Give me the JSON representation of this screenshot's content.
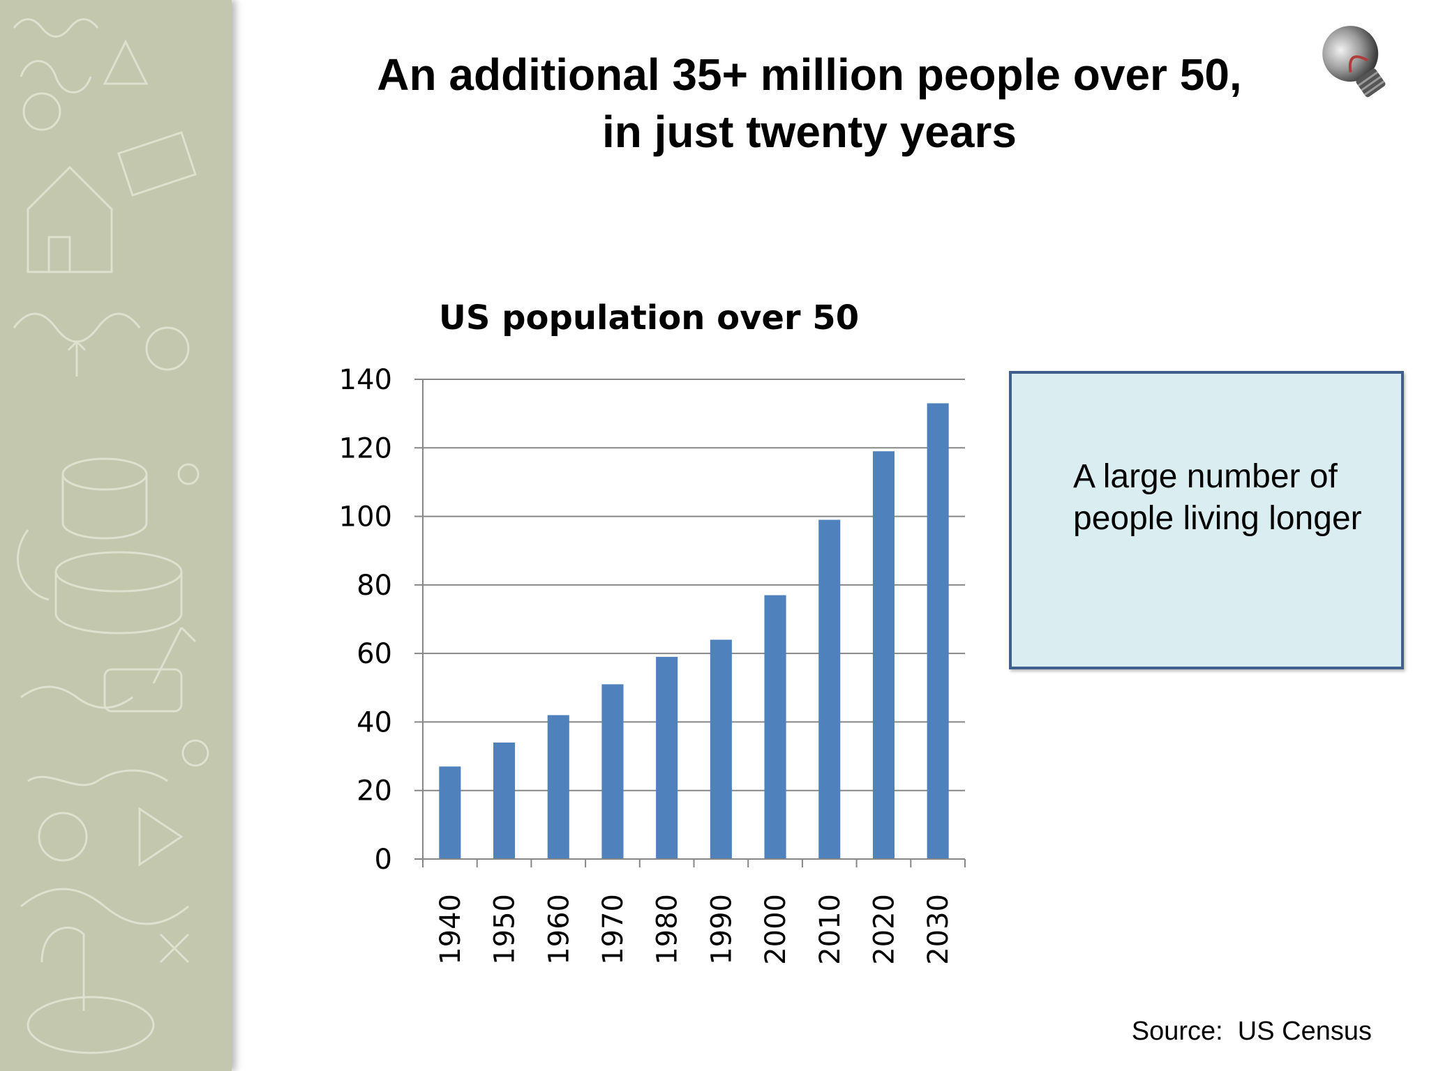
{
  "slide": {
    "title_line1": "An additional 35+ million people over 50,",
    "title_line2": "in just twenty years",
    "callout_text": "A large number of people living longer",
    "source": "Source:  US Census"
  },
  "colors": {
    "bar": "#4f81bd",
    "sidebar": "#c3c7ad",
    "callout_bg": "#daedf0",
    "callout_border": "#3f5f8c"
  },
  "icons": [
    "light-bulb-icon"
  ],
  "chart_data": {
    "type": "bar",
    "title": "US population over 50",
    "categories": [
      "1940",
      "1950",
      "1960",
      "1970",
      "1980",
      "1990",
      "2000",
      "2010",
      "2020",
      "2030"
    ],
    "series": [
      {
        "values": [
          27,
          34,
          42,
          51,
          59,
          64,
          77,
          99,
          119,
          133
        ]
      }
    ],
    "ylim": [
      0,
      140
    ],
    "yticks": [
      0,
      20,
      40,
      60,
      80,
      100,
      120,
      140
    ],
    "grid": true,
    "legend": "none",
    "xlabel": "",
    "ylabel": ""
  }
}
